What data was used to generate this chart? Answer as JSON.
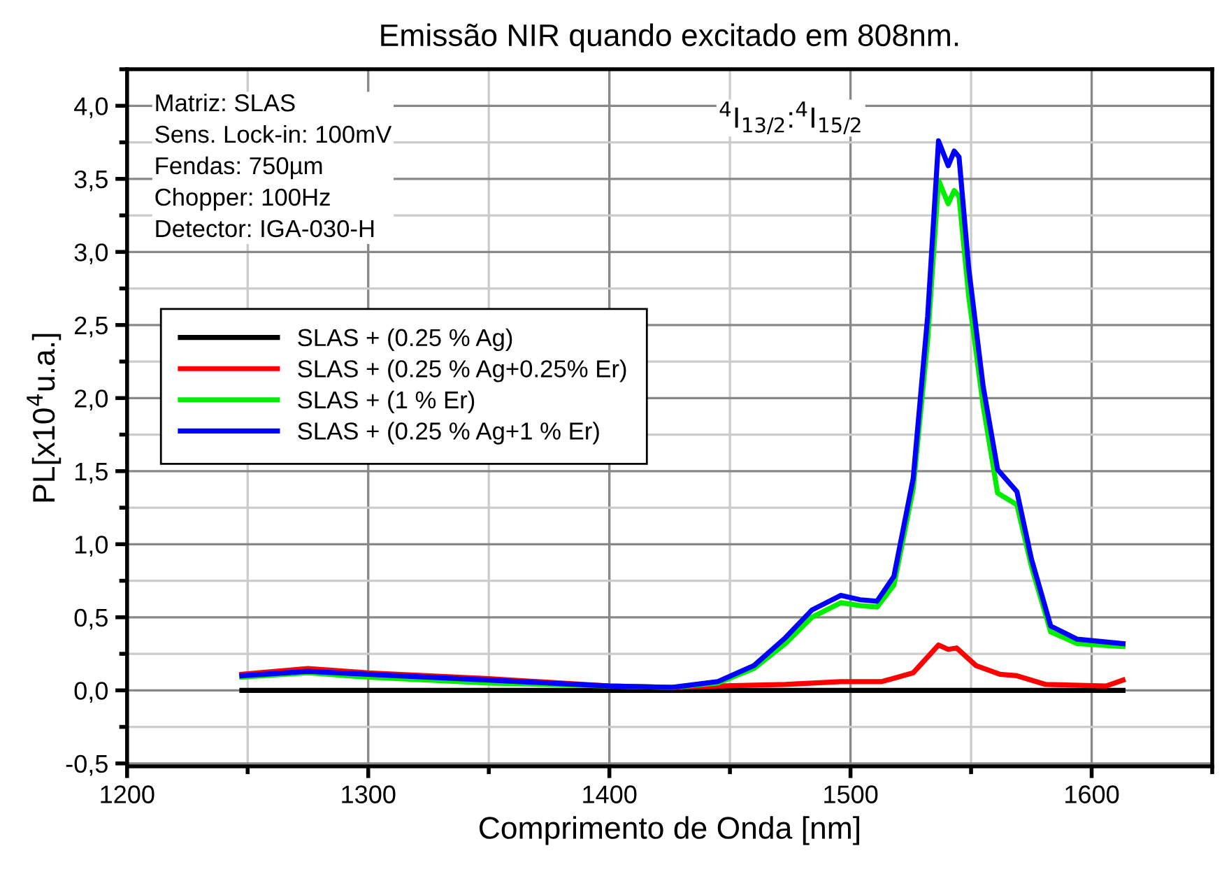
{
  "chart_data": {
    "type": "line",
    "title": "Emissão NIR quando excitado em 808nm.",
    "xlabel": "Comprimento de Onda [nm]",
    "ylabel": "PL[x10$^{4}$u.a.]",
    "xlim": [
      1200,
      1650
    ],
    "ylim": [
      -0.52,
      4.25
    ],
    "xticks": [
      1200,
      1300,
      1400,
      1500,
      1600
    ],
    "yticks": [
      {
        "value": -0.5,
        "label": "-0,5"
      },
      {
        "value": 0.0,
        "label": "0,0"
      },
      {
        "value": 0.5,
        "label": "0,5"
      },
      {
        "value": 1.0,
        "label": "1,0"
      },
      {
        "value": 1.5,
        "label": "1,5"
      },
      {
        "value": 2.0,
        "label": "2,0"
      },
      {
        "value": 2.5,
        "label": "2,5"
      },
      {
        "value": 3.0,
        "label": "3,0"
      },
      {
        "value": 3.5,
        "label": "3,5"
      },
      {
        "value": 4.0,
        "label": "4,0"
      }
    ],
    "grid": true,
    "legend": "left",
    "line_style": "solid",
    "marker": "none",
    "annotations": [
      "Matriz: SLAS\nSens. Lock-in: 100mV\nFendas: 750µm\nChopper: 100Hz\nDetector: IGA-030-H",
      "$^{4}$I$_{13/2}$:$^{4}$I$_{15/2}$"
    ],
    "series": [
      {
        "name": "SLAS + (0.25 % Ag)",
        "color": "#000000",
        "x": [
          1247.6,
          1613
        ],
        "values": [
          0.0,
          0.0
        ]
      },
      {
        "name": "SLAS + (0.25 % Ag+0.25% Er)",
        "color": "#ff0000",
        "x": [
          1247.6,
          1275,
          1300,
          1350,
          1400,
          1426,
          1445,
          1473,
          1496,
          1513,
          1526,
          1536.5,
          1540.5,
          1544,
          1552,
          1562,
          1569,
          1581,
          1606,
          1613
        ],
        "values": [
          0.11,
          0.15,
          0.12,
          0.08,
          0.03,
          0.02,
          0.03,
          0.04,
          0.06,
          0.06,
          0.12,
          0.31,
          0.28,
          0.29,
          0.17,
          0.11,
          0.1,
          0.04,
          0.03,
          0.07
        ]
      },
      {
        "name": "SLAS + (1 % Er)",
        "color": "#00ee00",
        "x": [
          1247.6,
          1275,
          1300,
          1350,
          1400,
          1426,
          1445,
          1460,
          1473,
          1484,
          1496,
          1504,
          1511,
          1518,
          1526,
          1532,
          1536.5,
          1540.5,
          1543,
          1545,
          1549,
          1555,
          1561,
          1569,
          1575,
          1583,
          1594,
          1613
        ],
        "values": [
          0.09,
          0.12,
          0.09,
          0.05,
          0.03,
          0.02,
          0.05,
          0.15,
          0.32,
          0.5,
          0.6,
          0.58,
          0.57,
          0.72,
          1.38,
          2.4,
          3.49,
          3.33,
          3.42,
          3.38,
          2.7,
          1.95,
          1.35,
          1.27,
          0.85,
          0.4,
          0.32,
          0.3
        ]
      },
      {
        "name": "SLAS + (0.25 % Ag+1 % Er)",
        "color": "#0000ff",
        "x": [
          1247.6,
          1275,
          1300,
          1350,
          1400,
          1426,
          1445,
          1460,
          1473,
          1484,
          1496,
          1504,
          1511,
          1518,
          1526,
          1532,
          1536.5,
          1540.5,
          1543,
          1545,
          1549,
          1555,
          1561,
          1569,
          1575,
          1583,
          1594,
          1613
        ],
        "values": [
          0.1,
          0.13,
          0.11,
          0.07,
          0.03,
          0.02,
          0.06,
          0.17,
          0.36,
          0.55,
          0.65,
          0.62,
          0.61,
          0.78,
          1.45,
          2.56,
          3.76,
          3.59,
          3.69,
          3.65,
          2.89,
          2.08,
          1.51,
          1.36,
          0.9,
          0.44,
          0.35,
          0.32
        ]
      }
    ]
  }
}
